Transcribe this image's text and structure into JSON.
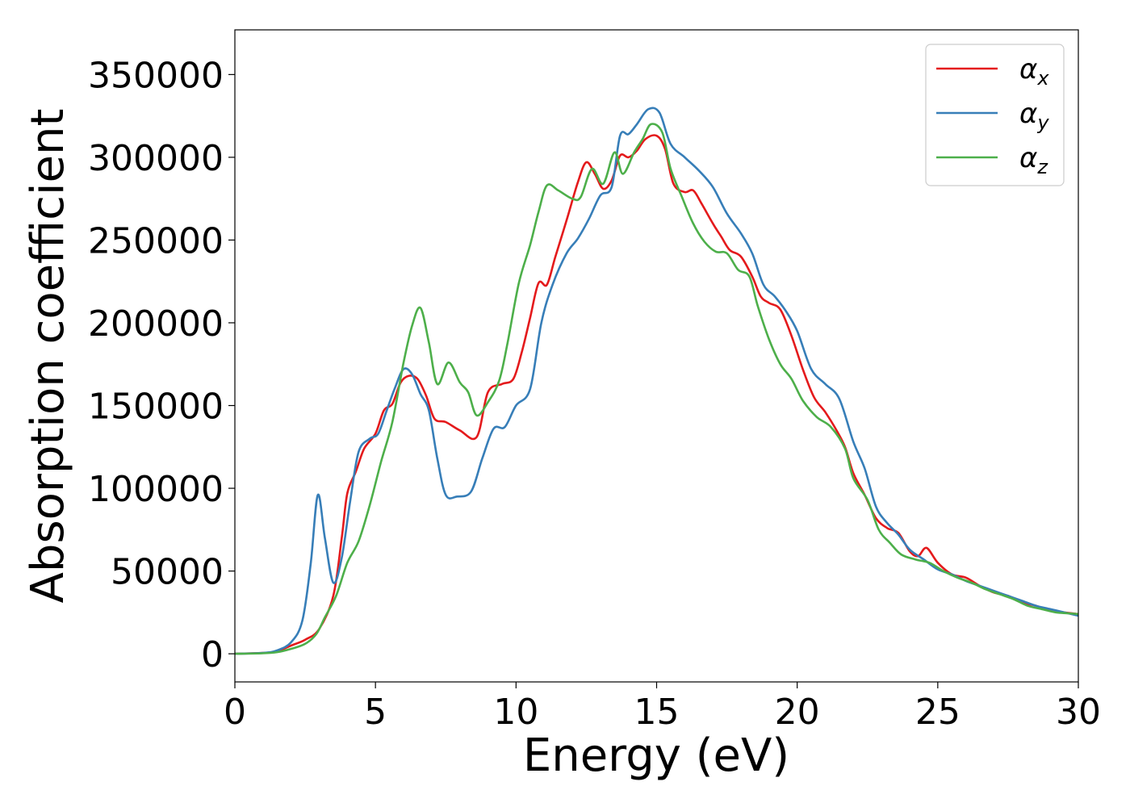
{
  "chart_data": {
    "type": "line",
    "xlabel": "Energy (eV)",
    "ylabel": "Absorption coefficient",
    "xlim": [
      0,
      30
    ],
    "ylim": [
      -17000,
      377000
    ],
    "xticks": [
      "0",
      "5",
      "10",
      "15",
      "20",
      "25",
      "30"
    ],
    "xtick_values": [
      0,
      5,
      10,
      15,
      20,
      25,
      30
    ],
    "yticks": [
      "0",
      "50000",
      "100000",
      "150000",
      "200000",
      "250000",
      "300000",
      "350000"
    ],
    "ytick_values": [
      0,
      50000,
      100000,
      150000,
      200000,
      250000,
      300000,
      350000
    ],
    "grid": false,
    "legend_position": "top-right",
    "series": [
      {
        "name": "α_x",
        "symbol": "α",
        "subscript": "x",
        "color": "#e41a1c",
        "points": [
          [
            0,
            0
          ],
          [
            1,
            500
          ],
          [
            1.5,
            1500
          ],
          [
            2,
            5000
          ],
          [
            2.5,
            8500
          ],
          [
            3,
            15000
          ],
          [
            3.5,
            35000
          ],
          [
            3.8,
            70000
          ],
          [
            4.0,
            97000
          ],
          [
            4.3,
            110000
          ],
          [
            4.6,
            124000
          ],
          [
            5,
            133000
          ],
          [
            5.3,
            147000
          ],
          [
            5.6,
            151000
          ],
          [
            5.9,
            164000
          ],
          [
            6.2,
            168000
          ],
          [
            6.5,
            166000
          ],
          [
            6.8,
            156000
          ],
          [
            7.1,
            142000
          ],
          [
            7.5,
            140000
          ],
          [
            8,
            135000
          ],
          [
            8.6,
            131000
          ],
          [
            9,
            158000
          ],
          [
            9.5,
            163000
          ],
          [
            9.9,
            166000
          ],
          [
            10.2,
            182000
          ],
          [
            10.5,
            203000
          ],
          [
            10.8,
            224000
          ],
          [
            11.1,
            223000
          ],
          [
            11.4,
            240000
          ],
          [
            11.8,
            262000
          ],
          [
            12.2,
            285000
          ],
          [
            12.5,
            297000
          ],
          [
            12.8,
            290000
          ],
          [
            13.1,
            281000
          ],
          [
            13.4,
            286000
          ],
          [
            13.7,
            301000
          ],
          [
            14,
            300000
          ],
          [
            14.3,
            304000
          ],
          [
            14.6,
            311000
          ],
          [
            15,
            313000
          ],
          [
            15.3,
            305000
          ],
          [
            15.6,
            284000
          ],
          [
            16,
            279000
          ],
          [
            16.3,
            280000
          ],
          [
            16.6,
            272000
          ],
          [
            17,
            260000
          ],
          [
            17.3,
            252000
          ],
          [
            17.6,
            244000
          ],
          [
            18,
            240000
          ],
          [
            18.4,
            228000
          ],
          [
            18.7,
            216000
          ],
          [
            19,
            212000
          ],
          [
            19.4,
            208000
          ],
          [
            19.8,
            192000
          ],
          [
            20.2,
            172000
          ],
          [
            20.6,
            155000
          ],
          [
            21,
            146000
          ],
          [
            21.4,
            135000
          ],
          [
            21.7,
            125000
          ],
          [
            22,
            109000
          ],
          [
            22.4,
            96000
          ],
          [
            22.8,
            82000
          ],
          [
            23.2,
            76000
          ],
          [
            23.6,
            73000
          ],
          [
            24,
            62000
          ],
          [
            24.3,
            59000
          ],
          [
            24.6,
            64000
          ],
          [
            25,
            55000
          ],
          [
            25.5,
            48000
          ],
          [
            26,
            46000
          ],
          [
            26.5,
            41000
          ],
          [
            27,
            37000
          ],
          [
            27.5,
            35000
          ],
          [
            28,
            31000
          ],
          [
            28.5,
            29000
          ],
          [
            29,
            26000
          ],
          [
            29.5,
            25000
          ],
          [
            30,
            24000
          ]
        ]
      },
      {
        "name": "α_y",
        "symbol": "α",
        "subscript": "y",
        "color": "#377eb8",
        "points": [
          [
            0,
            0
          ],
          [
            1,
            500
          ],
          [
            1.5,
            2000
          ],
          [
            2,
            7000
          ],
          [
            2.4,
            20000
          ],
          [
            2.7,
            55000
          ],
          [
            2.95,
            96000
          ],
          [
            3.2,
            70000
          ],
          [
            3.5,
            43000
          ],
          [
            3.8,
            58000
          ],
          [
            4.1,
            92000
          ],
          [
            4.4,
            122000
          ],
          [
            4.8,
            130000
          ],
          [
            5.1,
            133000
          ],
          [
            5.4,
            147000
          ],
          [
            5.7,
            161000
          ],
          [
            6,
            172000
          ],
          [
            6.3,
            169000
          ],
          [
            6.6,
            157000
          ],
          [
            6.9,
            147000
          ],
          [
            7.2,
            118000
          ],
          [
            7.5,
            96000
          ],
          [
            7.9,
            95000
          ],
          [
            8.4,
            98000
          ],
          [
            8.8,
            118000
          ],
          [
            9.2,
            136000
          ],
          [
            9.6,
            137000
          ],
          [
            10,
            150000
          ],
          [
            10.5,
            160000
          ],
          [
            10.9,
            200000
          ],
          [
            11.3,
            223000
          ],
          [
            11.8,
            242000
          ],
          [
            12.2,
            251000
          ],
          [
            12.6,
            263000
          ],
          [
            13,
            277000
          ],
          [
            13.4,
            282000
          ],
          [
            13.7,
            313000
          ],
          [
            14,
            314000
          ],
          [
            14.3,
            320000
          ],
          [
            14.7,
            329000
          ],
          [
            15.1,
            327000
          ],
          [
            15.5,
            308000
          ],
          [
            16,
            300000
          ],
          [
            16.5,
            292000
          ],
          [
            17,
            282000
          ],
          [
            17.5,
            266000
          ],
          [
            18,
            254000
          ],
          [
            18.4,
            242000
          ],
          [
            18.8,
            223000
          ],
          [
            19.2,
            216000
          ],
          [
            19.6,
            207000
          ],
          [
            20,
            195000
          ],
          [
            20.5,
            172000
          ],
          [
            21,
            163000
          ],
          [
            21.5,
            154000
          ],
          [
            22,
            128000
          ],
          [
            22.4,
            112000
          ],
          [
            22.8,
            89000
          ],
          [
            23.2,
            79000
          ],
          [
            23.6,
            72000
          ],
          [
            24,
            63000
          ],
          [
            24.5,
            57000
          ],
          [
            25,
            51000
          ],
          [
            25.5,
            48000
          ],
          [
            26,
            44000
          ],
          [
            26.5,
            41000
          ],
          [
            27,
            38000
          ],
          [
            27.5,
            35000
          ],
          [
            28,
            32000
          ],
          [
            28.5,
            29000
          ],
          [
            29,
            27000
          ],
          [
            29.5,
            25000
          ],
          [
            30,
            23000
          ]
        ]
      },
      {
        "name": "α_z",
        "symbol": "α",
        "subscript": "z",
        "color": "#4daf4a",
        "points": [
          [
            0,
            0
          ],
          [
            1,
            300
          ],
          [
            1.5,
            1000
          ],
          [
            2,
            3000
          ],
          [
            2.5,
            6000
          ],
          [
            2.9,
            12000
          ],
          [
            3.2,
            22000
          ],
          [
            3.6,
            35000
          ],
          [
            4,
            55000
          ],
          [
            4.4,
            68000
          ],
          [
            4.8,
            90000
          ],
          [
            5.2,
            116000
          ],
          [
            5.6,
            140000
          ],
          [
            6,
            176000
          ],
          [
            6.3,
            198000
          ],
          [
            6.6,
            209000
          ],
          [
            6.9,
            188000
          ],
          [
            7.2,
            163000
          ],
          [
            7.6,
            176000
          ],
          [
            8,
            164000
          ],
          [
            8.3,
            158000
          ],
          [
            8.6,
            144000
          ],
          [
            9,
            152000
          ],
          [
            9.4,
            165000
          ],
          [
            9.7,
            188000
          ],
          [
            10.1,
            224000
          ],
          [
            10.5,
            247000
          ],
          [
            10.8,
            267000
          ],
          [
            11.1,
            283000
          ],
          [
            11.5,
            280000
          ],
          [
            12,
            275000
          ],
          [
            12.3,
            276000
          ],
          [
            12.7,
            293000
          ],
          [
            13.1,
            284000
          ],
          [
            13.5,
            303000
          ],
          [
            13.8,
            290000
          ],
          [
            14.2,
            303000
          ],
          [
            14.5,
            311000
          ],
          [
            14.8,
            320000
          ],
          [
            15.2,
            315000
          ],
          [
            15.5,
            293000
          ],
          [
            15.9,
            276000
          ],
          [
            16.3,
            260000
          ],
          [
            16.7,
            249000
          ],
          [
            17.1,
            243000
          ],
          [
            17.5,
            242000
          ],
          [
            17.9,
            232000
          ],
          [
            18.3,
            228000
          ],
          [
            18.6,
            210000
          ],
          [
            19,
            190000
          ],
          [
            19.4,
            175000
          ],
          [
            19.8,
            166000
          ],
          [
            20.2,
            153000
          ],
          [
            20.7,
            143000
          ],
          [
            21.2,
            137000
          ],
          [
            21.7,
            124000
          ],
          [
            22,
            106000
          ],
          [
            22.5,
            93000
          ],
          [
            22.9,
            75000
          ],
          [
            23.3,
            67000
          ],
          [
            23.7,
            60000
          ],
          [
            24.2,
            57000
          ],
          [
            24.7,
            55000
          ],
          [
            25.2,
            50000
          ],
          [
            25.7,
            46000
          ],
          [
            26.2,
            43000
          ],
          [
            26.7,
            39000
          ],
          [
            27.2,
            36000
          ],
          [
            27.7,
            33000
          ],
          [
            28.2,
            29000
          ],
          [
            28.7,
            27000
          ],
          [
            29.2,
            25000
          ],
          [
            29.6,
            24500
          ],
          [
            30,
            24000
          ]
        ]
      }
    ]
  }
}
